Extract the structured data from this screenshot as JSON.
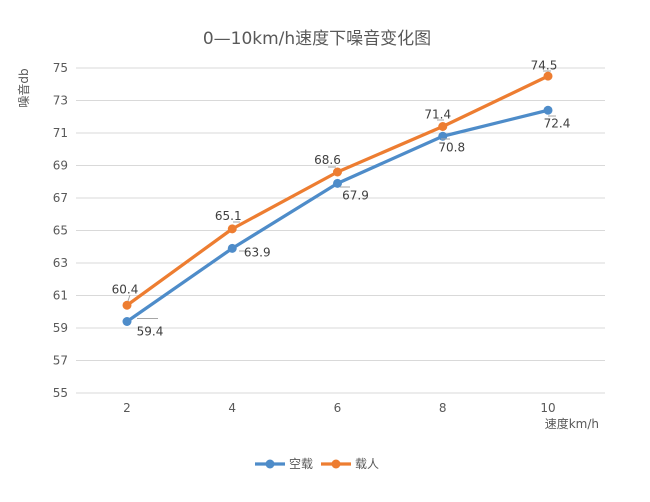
{
  "chart_data": {
    "type": "line",
    "title": "0—10km/h速度下噪音变化图",
    "xlabel": "速度km/h",
    "ylabel": "噪音db",
    "categories": [
      "2",
      "4",
      "6",
      "8",
      "10"
    ],
    "yticks": [
      55,
      57,
      59,
      61,
      63,
      65,
      67,
      69,
      71,
      73,
      75
    ],
    "ylim": [
      55,
      75
    ],
    "grid": "horizontal-only",
    "legend_position": "bottom-center",
    "series": [
      {
        "name": "空载",
        "color": "#4E8CC9",
        "values": [
          59.4,
          63.9,
          67.9,
          70.8,
          72.4
        ],
        "data_labels": [
          "59.4",
          "63.9",
          "67.9",
          "70.8",
          "72.4"
        ],
        "label_offsets": [
          [
            23,
            10
          ],
          [
            25,
            4
          ],
          [
            18,
            12
          ],
          [
            9,
            11
          ],
          [
            9,
            13
          ]
        ],
        "leaders": [
          [
            [
              137,
              318.5
            ],
            [
              158,
              318.5
            ]
          ],
          [
            [
              239,
              251
            ],
            [
              247,
              251
            ]
          ],
          [
            [
              340,
              187
            ],
            [
              350,
              187
            ]
          ],
          [
            [
              441,
              139
            ],
            [
              450,
              139
            ]
          ],
          [
            [
              548,
              116
            ],
            [
              556,
              116
            ]
          ]
        ]
      },
      {
        "name": "载人",
        "color": "#ED7D31",
        "values": [
          60.4,
          65.1,
          68.6,
          71.4,
          74.5
        ],
        "data_labels": [
          "60.4",
          "65.1",
          "68.6",
          "71.4",
          "74.5"
        ],
        "label_offsets": [
          [
            -2,
            -16
          ],
          [
            -4,
            -13
          ],
          [
            -10,
            -12
          ],
          [
            -5,
            -12
          ],
          [
            -4,
            -11
          ]
        ],
        "leaders": [
          [
            [
              130,
              295
            ],
            [
              128,
              301
            ]
          ],
          [
            [
              233,
              222
            ],
            [
              240,
              222
            ]
          ],
          [
            [
              328,
              167
            ],
            [
              336,
              167
            ]
          ],
          [
            [
              437,
              120
            ],
            [
              444,
              120
            ]
          ],
          [
            [
              543,
              71
            ],
            [
              551,
              71
            ]
          ]
        ]
      }
    ],
    "colors": {
      "grid": "#d9d9d9",
      "tick_text": "#595959",
      "title_text": "#595959",
      "axis_title_text": "#595959",
      "data_label_text": "#404040",
      "leader_line": "#a6a6a6",
      "legend_text": "#595959",
      "background": "#ffffff"
    }
  }
}
